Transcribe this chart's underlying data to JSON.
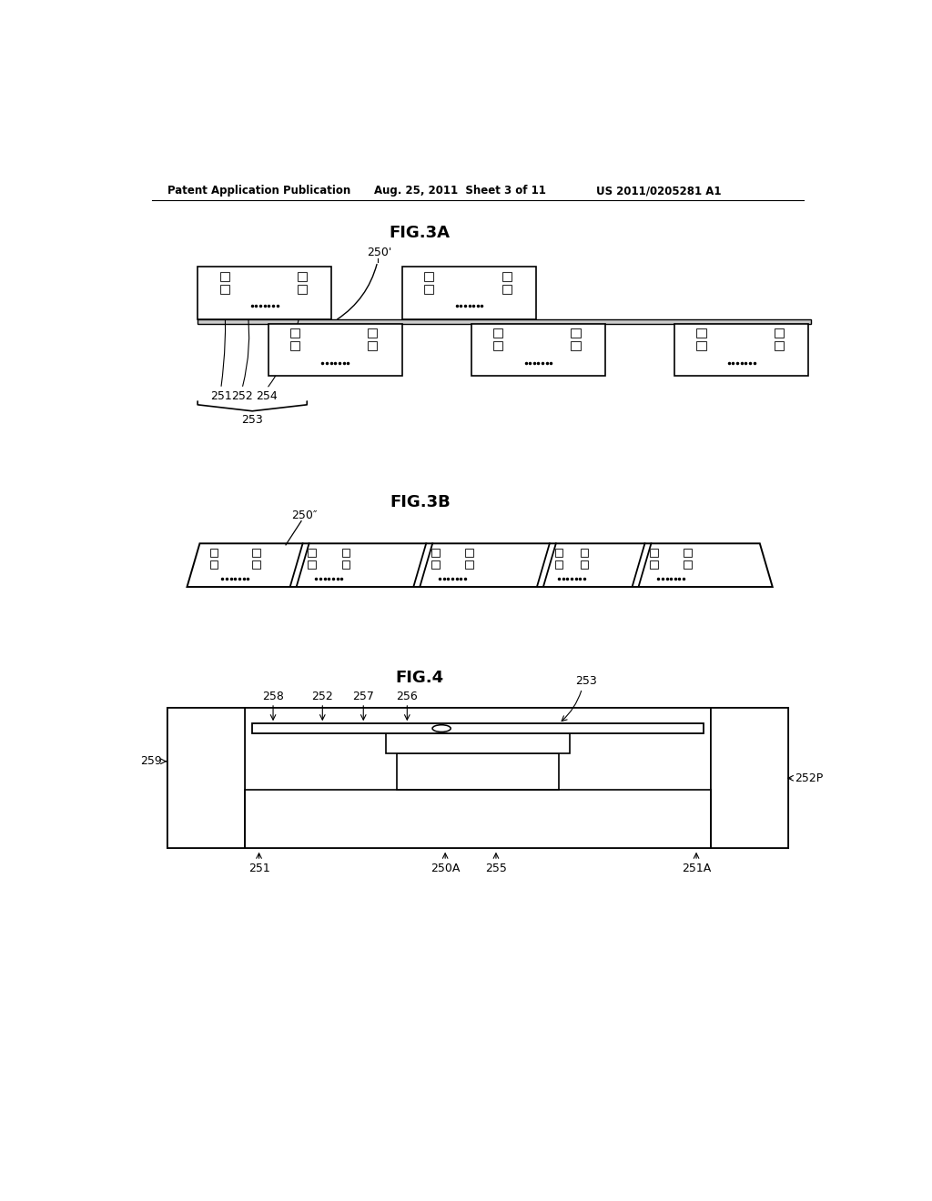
{
  "bg_color": "#ffffff",
  "header_left": "Patent Application Publication",
  "header_mid": "Aug. 25, 2011  Sheet 3 of 11",
  "header_right": "US 2011/0205281 A1",
  "fig3a_title": "FIG.3A",
  "fig3b_title": "FIG.3B",
  "fig4_title": "FIG.4",
  "label_250prime": "250’",
  "label_250doubleprime": "250″",
  "label_251": "251",
  "label_252": "252",
  "label_253": "253",
  "label_254": "254",
  "label_250A": "250A",
  "label_251A": "251A",
  "label_252P": "252P",
  "label_255": "255",
  "label_256": "256",
  "label_257": "257",
  "label_258": "258",
  "label_259": "259"
}
